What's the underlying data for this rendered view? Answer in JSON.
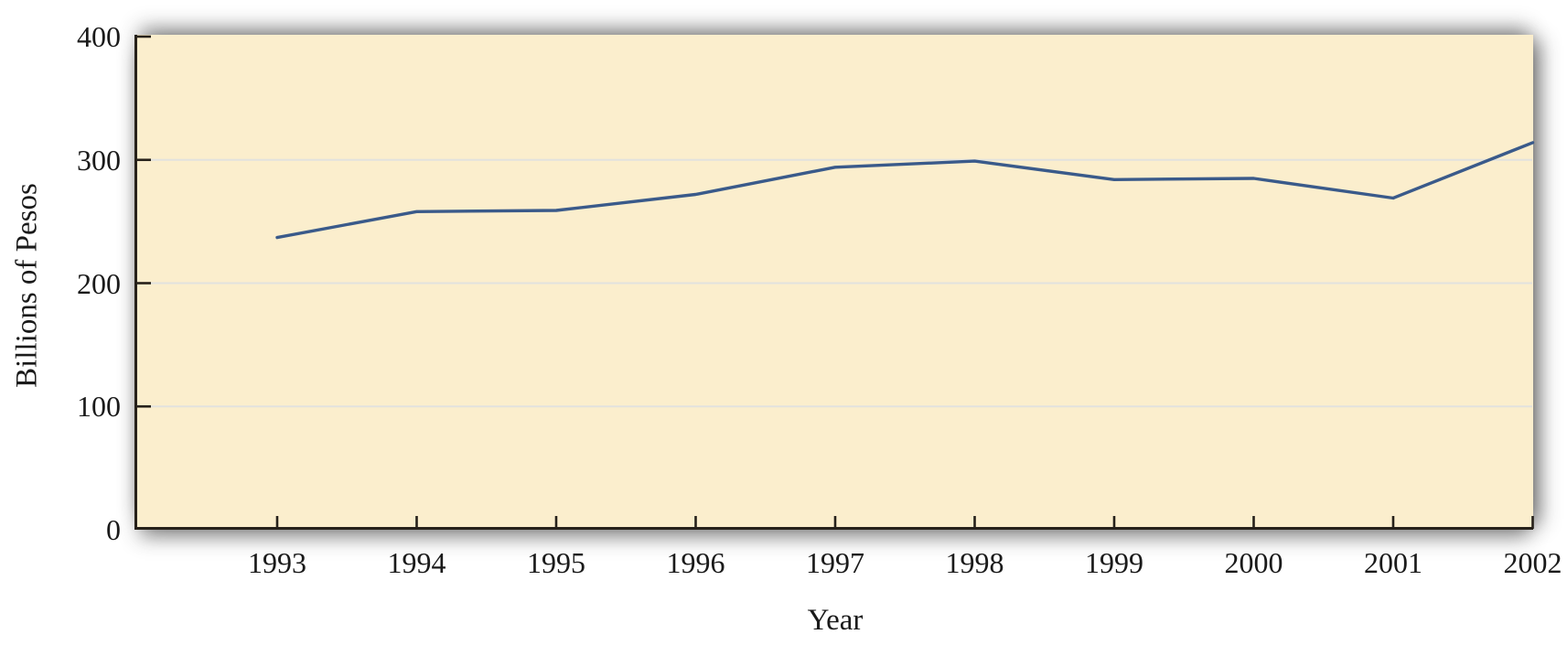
{
  "chart_data": {
    "type": "line",
    "title": "",
    "xlabel": "Year",
    "ylabel": "Billions of Pesos",
    "categories": [
      "1993",
      "1994",
      "1995",
      "1996",
      "1997",
      "1998",
      "1999",
      "2000",
      "2001",
      "2002"
    ],
    "series": [
      {
        "name": "Billions of Pesos",
        "values": [
          237,
          258,
          259,
          272,
          294,
          299,
          284,
          285,
          269,
          314
        ]
      }
    ],
    "ylim": [
      0,
      400
    ],
    "yticks": [
      0,
      100,
      200,
      300,
      400
    ],
    "gridlines": [
      100,
      200,
      300
    ],
    "legend": "none",
    "grid": "horizontal-only",
    "colors": {
      "plot_bg": "#FBEECD",
      "line": "#3A5A8A",
      "grid": "#E2E2DE",
      "axis": "#26211A",
      "text": "#1A1A1A"
    }
  }
}
